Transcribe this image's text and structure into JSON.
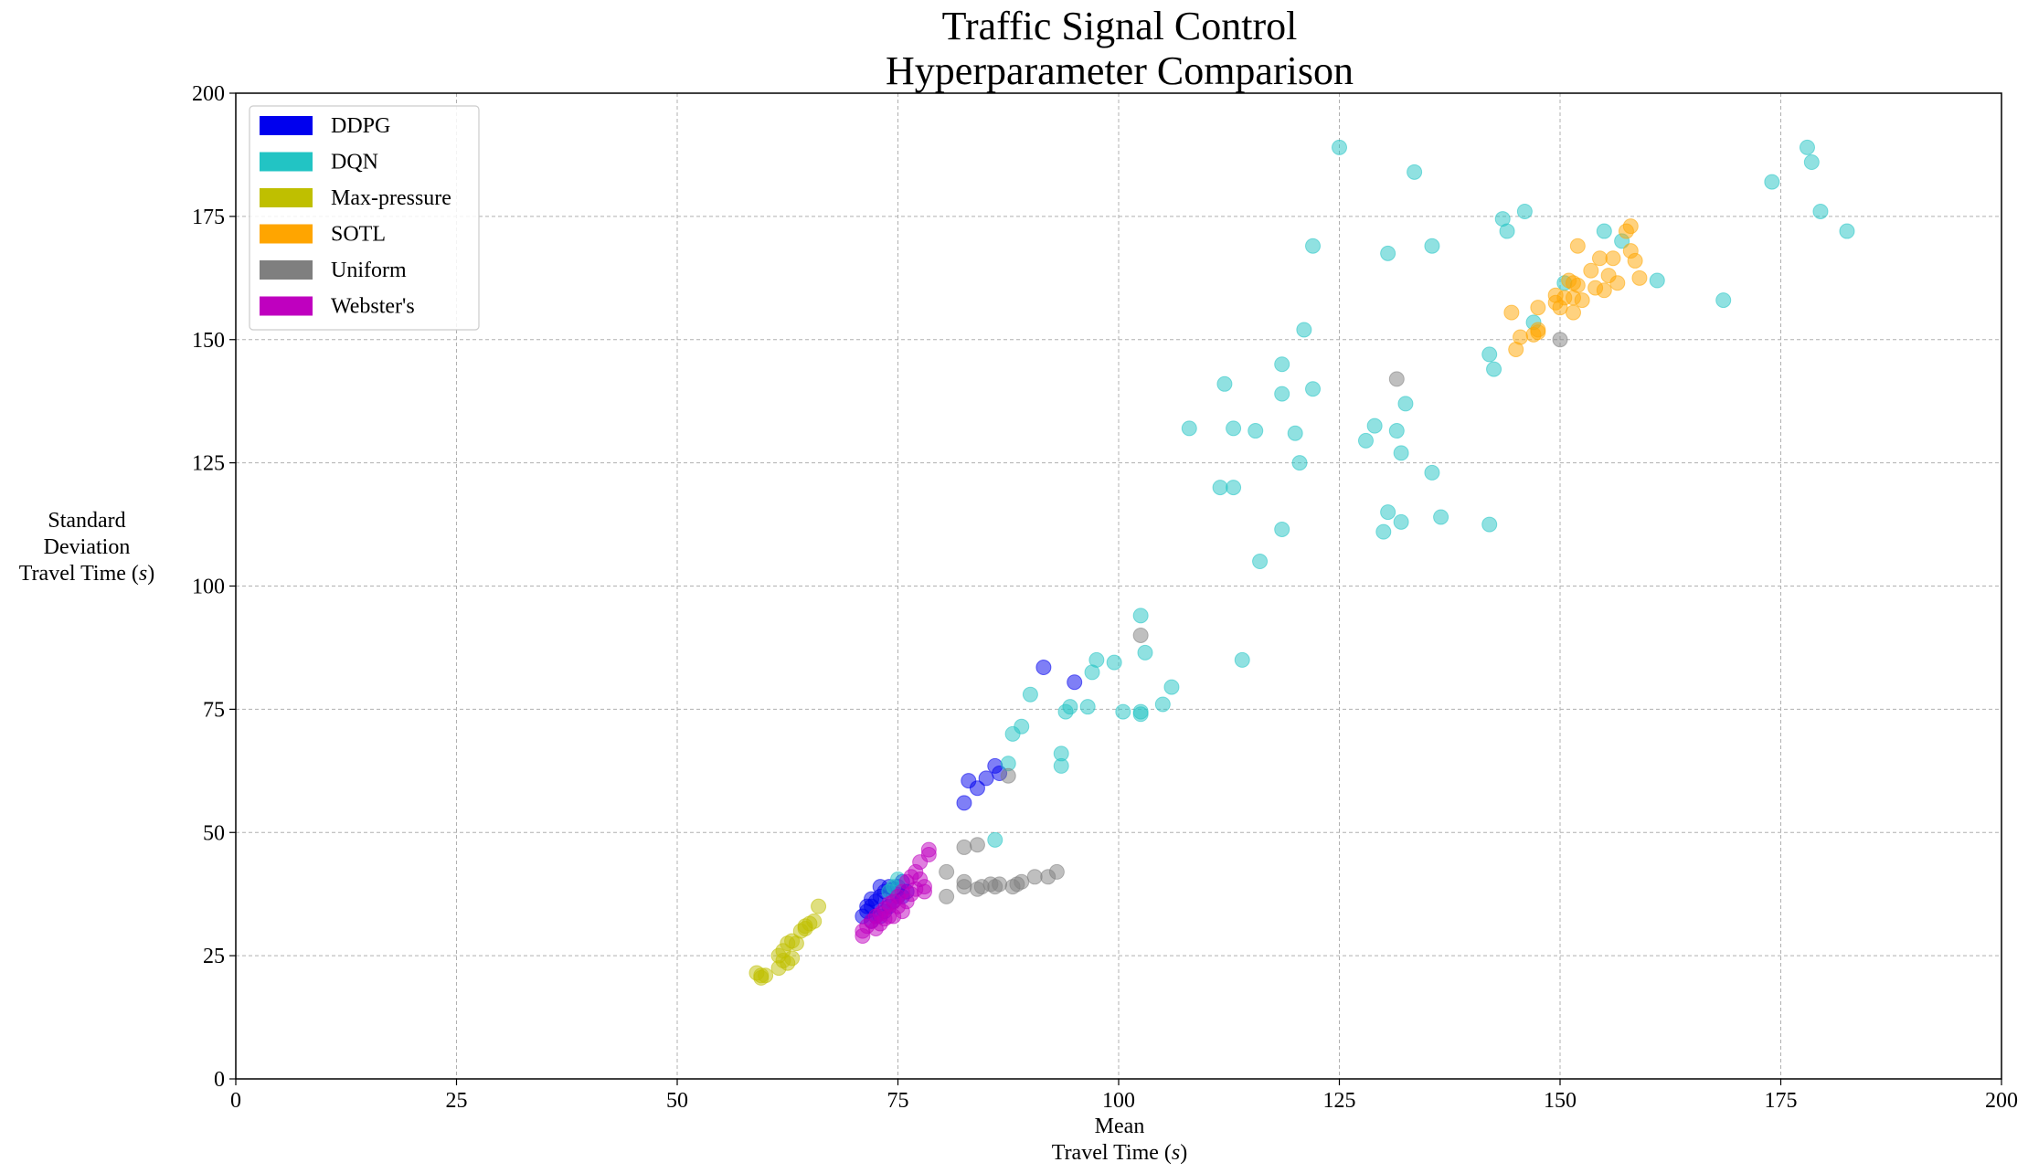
{
  "chart_data": {
    "type": "scatter",
    "title": [
      "Traffic Signal Control",
      "Hyperparameter Comparison"
    ],
    "xlabel": [
      "Mean",
      "Travel Time (",
      "s",
      ")"
    ],
    "ylabel": [
      "Standard",
      "Deviation",
      "Travel Time (",
      "s",
      ")"
    ],
    "xlim": [
      0,
      200
    ],
    "ylim": [
      0,
      200
    ],
    "xticks": [
      0,
      25,
      50,
      75,
      100,
      125,
      150,
      175,
      200
    ],
    "yticks": [
      0,
      25,
      50,
      75,
      100,
      125,
      150,
      175,
      200
    ],
    "grid": true,
    "legend_position": "top-left",
    "series": [
      {
        "name": "DDPG",
        "color": "#0000ee",
        "points": [
          [
            91.5,
            83.5
          ],
          [
            95,
            80.5
          ],
          [
            83,
            60.5
          ],
          [
            84,
            59
          ],
          [
            85,
            61
          ],
          [
            86,
            63.5
          ],
          [
            86.5,
            62
          ],
          [
            82.5,
            56
          ],
          [
            71,
            33
          ],
          [
            71.5,
            34
          ],
          [
            72,
            35
          ],
          [
            72.5,
            36
          ],
          [
            73,
            37
          ],
          [
            73.5,
            38
          ],
          [
            74,
            39
          ],
          [
            74.5,
            38.5
          ],
          [
            75,
            39
          ],
          [
            75.5,
            40
          ],
          [
            73,
            39
          ],
          [
            72,
            36.5
          ],
          [
            71.5,
            35
          ],
          [
            72.5,
            33
          ],
          [
            73.5,
            34
          ],
          [
            74.5,
            36
          ],
          [
            75.5,
            37
          ],
          [
            76,
            38
          ],
          [
            72,
            32
          ],
          [
            73,
            33
          ],
          [
            74,
            35
          ],
          [
            75,
            37
          ]
        ]
      },
      {
        "name": "DQN",
        "color": "#22c4c4",
        "points": [
          [
            125,
            189
          ],
          [
            133.5,
            184
          ],
          [
            178,
            189
          ],
          [
            178.5,
            186
          ],
          [
            174,
            182
          ],
          [
            179.5,
            176
          ],
          [
            182.5,
            172
          ],
          [
            143.5,
            174.5
          ],
          [
            146,
            176
          ],
          [
            144,
            172
          ],
          [
            155,
            172
          ],
          [
            157,
            170
          ],
          [
            122,
            169
          ],
          [
            135.5,
            169
          ],
          [
            130.5,
            167.5
          ],
          [
            150.5,
            161.5
          ],
          [
            161,
            162
          ],
          [
            168.5,
            158
          ],
          [
            121,
            152
          ],
          [
            147,
            153.5
          ],
          [
            142,
            147
          ],
          [
            142.5,
            144
          ],
          [
            118.5,
            145
          ],
          [
            112,
            141
          ],
          [
            118.5,
            139
          ],
          [
            122,
            140
          ],
          [
            132.5,
            137
          ],
          [
            108,
            132
          ],
          [
            113,
            132
          ],
          [
            115.5,
            131.5
          ],
          [
            120,
            131
          ],
          [
            129,
            132.5
          ],
          [
            131.5,
            131.5
          ],
          [
            128,
            129.5
          ],
          [
            132,
            127
          ],
          [
            120.5,
            125
          ],
          [
            111.5,
            120
          ],
          [
            113,
            120
          ],
          [
            135.5,
            123
          ],
          [
            130.5,
            115
          ],
          [
            132,
            113
          ],
          [
            130,
            111
          ],
          [
            136.5,
            114
          ],
          [
            142,
            112.5
          ],
          [
            118.5,
            111.5
          ],
          [
            116,
            105
          ],
          [
            102.5,
            94
          ],
          [
            103,
            86.5
          ],
          [
            97.5,
            85
          ],
          [
            99.5,
            84.5
          ],
          [
            97,
            82.5
          ],
          [
            114,
            85
          ],
          [
            106,
            79.5
          ],
          [
            90,
            78
          ],
          [
            94.5,
            75.5
          ],
          [
            96.5,
            75.5
          ],
          [
            94,
            74.5
          ],
          [
            100.5,
            74.5
          ],
          [
            102.5,
            74
          ],
          [
            102.5,
            74.5
          ],
          [
            105,
            76
          ],
          [
            89,
            71.5
          ],
          [
            88,
            70
          ],
          [
            93.5,
            66
          ],
          [
            87.5,
            64
          ],
          [
            93.5,
            63.5
          ],
          [
            86,
            48.5
          ],
          [
            75,
            40.5
          ],
          [
            74.5,
            39
          ],
          [
            74,
            38
          ]
        ]
      },
      {
        "name": "Max-pressure",
        "color": "#bfbf00",
        "points": [
          [
            59,
            21.5
          ],
          [
            59.5,
            21
          ],
          [
            59.5,
            20.5
          ],
          [
            60,
            21
          ],
          [
            61.5,
            22.5
          ],
          [
            62,
            24
          ],
          [
            62.5,
            23.5
          ],
          [
            63,
            24.5
          ],
          [
            61.5,
            25
          ],
          [
            62,
            26
          ],
          [
            62.5,
            27.5
          ],
          [
            63,
            28
          ],
          [
            63.5,
            27.5
          ],
          [
            64,
            30
          ],
          [
            64.5,
            31
          ],
          [
            65,
            31.5
          ],
          [
            64.5,
            30.5
          ],
          [
            65.5,
            32
          ],
          [
            66,
            35
          ]
        ]
      },
      {
        "name": "SOTL",
        "color": "#ffa500",
        "points": [
          [
            158,
            173
          ],
          [
            157.5,
            172
          ],
          [
            152,
            169
          ],
          [
            158,
            168
          ],
          [
            154.5,
            166.5
          ],
          [
            156,
            166.5
          ],
          [
            158.5,
            166
          ],
          [
            153.5,
            164
          ],
          [
            155.5,
            163
          ],
          [
            159,
            162.5
          ],
          [
            151,
            162
          ],
          [
            151.5,
            161.5
          ],
          [
            152,
            161
          ],
          [
            156.5,
            161.5
          ],
          [
            154,
            160.5
          ],
          [
            155,
            160
          ],
          [
            149.5,
            159
          ],
          [
            150.5,
            158.5
          ],
          [
            151.5,
            158.5
          ],
          [
            152.5,
            158
          ],
          [
            149.5,
            157.5
          ],
          [
            150,
            156.5
          ],
          [
            147.5,
            156.5
          ],
          [
            151.5,
            155.5
          ],
          [
            144.5,
            155.5
          ],
          [
            147.5,
            152
          ],
          [
            147.5,
            151.5
          ],
          [
            147,
            151
          ],
          [
            145.5,
            150.5
          ],
          [
            145,
            148
          ]
        ]
      },
      {
        "name": "Uniform",
        "color": "#7f7f7f",
        "points": [
          [
            150,
            150
          ],
          [
            131.5,
            142
          ],
          [
            102.5,
            90
          ],
          [
            87.5,
            61.5
          ],
          [
            84,
            47.5
          ],
          [
            82.5,
            47
          ],
          [
            80.5,
            42
          ],
          [
            82.5,
            40
          ],
          [
            80.5,
            37
          ],
          [
            82.5,
            39
          ],
          [
            84,
            38.5
          ],
          [
            84.5,
            39
          ],
          [
            85.5,
            39.5
          ],
          [
            86,
            39
          ],
          [
            86.5,
            39.5
          ],
          [
            88,
            39
          ],
          [
            88.5,
            39.5
          ],
          [
            89,
            40
          ],
          [
            90.5,
            41
          ],
          [
            92,
            41
          ],
          [
            93,
            42
          ]
        ]
      },
      {
        "name": "Webster's",
        "color": "#bf00bf",
        "points": [
          [
            78.5,
            46.5
          ],
          [
            78.5,
            45.5
          ],
          [
            77.5,
            44
          ],
          [
            77,
            42
          ],
          [
            76.5,
            41
          ],
          [
            77.5,
            40.5
          ],
          [
            76,
            40
          ],
          [
            78,
            39
          ],
          [
            77,
            38.5
          ],
          [
            75.5,
            38
          ],
          [
            76.5,
            37.5
          ],
          [
            78,
            38
          ],
          [
            75,
            37
          ],
          [
            74.5,
            36
          ],
          [
            76,
            36
          ],
          [
            74,
            35.5
          ],
          [
            75,
            35
          ],
          [
            73.5,
            34.5
          ],
          [
            75.5,
            34
          ],
          [
            73,
            33.5
          ],
          [
            74.5,
            33
          ],
          [
            72.5,
            33
          ],
          [
            72,
            32
          ],
          [
            73,
            31.5
          ],
          [
            71.5,
            31
          ],
          [
            72.5,
            30.5
          ],
          [
            71,
            30
          ],
          [
            71,
            29
          ],
          [
            73.5,
            32.5
          ],
          [
            74,
            33
          ]
        ]
      }
    ]
  }
}
